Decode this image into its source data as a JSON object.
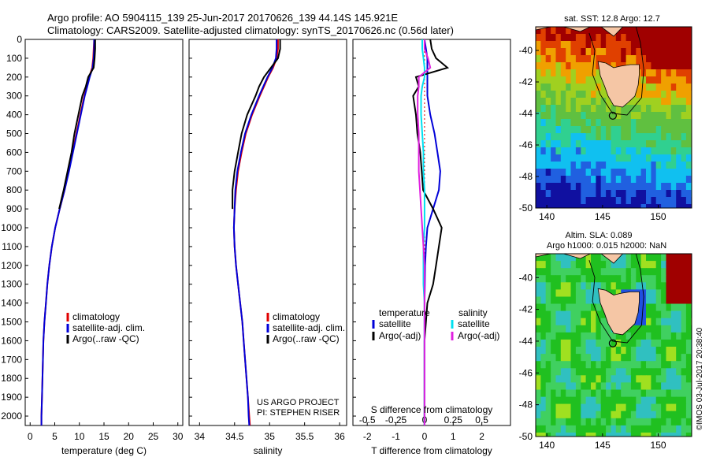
{
  "header": {
    "line1": "Argo profile: AO 5904115_139 25-Jun-2017 20170626_139 44.14S 145.921E",
    "line2": "Climatology: CARS2009. Satellite-adjusted climatology: synTS_20170626.nc (0.56d later)"
  },
  "credit": "©IMOS 03-Jul-2017 20:38:40",
  "colors": {
    "climatology": "#e00000",
    "satellite": "#0000d8",
    "argo": "#000000",
    "s_satellite": "#00e0f0",
    "s_argo": "#e020e0",
    "coast": "#f5c6a5"
  },
  "chart_data": [
    {
      "type": "line",
      "name": "temperature",
      "xlabel": "temperature (deg C)",
      "ylabel": "",
      "xlim": [
        -1,
        31
      ],
      "ylim": [
        2050,
        0
      ],
      "xticks": [
        "0",
        "5",
        "10",
        "15",
        "20",
        "25",
        "30"
      ],
      "xtick_values": [
        0,
        5,
        10,
        15,
        20,
        25,
        30
      ],
      "yticks": [
        "0",
        "100",
        "200",
        "300",
        "400",
        "500",
        "600",
        "700",
        "800",
        "900",
        "1000",
        "1100",
        "1200",
        "1300",
        "1400",
        "1500",
        "1600",
        "1700",
        "1800",
        "1900",
        "2000"
      ],
      "ytick_values": [
        0,
        100,
        200,
        300,
        400,
        500,
        600,
        700,
        800,
        900,
        1000,
        1100,
        1200,
        1300,
        1400,
        1500,
        1600,
        1700,
        1800,
        1900,
        2000
      ],
      "legend": {
        "position": "center-bottom",
        "entries": [
          "climatology",
          "satellite-adj. clim.",
          "Argo(..raw -QC)"
        ]
      },
      "depth": [
        0,
        50,
        100,
        150,
        200,
        250,
        300,
        400,
        500,
        600,
        700,
        800,
        900,
        1000,
        1100,
        1200,
        1300,
        1400,
        1500,
        1600,
        1700,
        1800,
        1900,
        2000,
        2050
      ],
      "series": [
        {
          "name": "climatology",
          "color": "#e00000",
          "values": [
            13.0,
            12.9,
            12.8,
            12.6,
            12.0,
            11.5,
            11.0,
            10.2,
            9.4,
            8.6,
            7.8,
            7.0,
            6.0,
            5.1,
            4.4,
            3.9,
            3.5,
            3.2,
            2.9,
            2.7,
            2.6,
            2.5,
            2.4,
            2.3,
            2.3
          ]
        },
        {
          "name": "satellite-adj. clim.",
          "color": "#0000d8",
          "values": [
            13.0,
            13.0,
            12.9,
            12.7,
            12.1,
            11.6,
            11.1,
            10.3,
            9.5,
            8.7,
            7.9,
            7.0,
            6.0,
            5.1,
            4.4,
            3.9,
            3.5,
            3.2,
            2.9,
            2.7,
            2.6,
            2.5,
            2.4,
            2.3,
            2.3
          ]
        },
        {
          "name": "Argo(..raw -QC)",
          "color": "#000000",
          "values": [
            13.2,
            13.2,
            13.1,
            12.9,
            11.8,
            11.3,
            10.6,
            9.8,
            9.0,
            8.4,
            7.6,
            6.8,
            5.9,
            null,
            null,
            null,
            null,
            null,
            null,
            null,
            null,
            null,
            null,
            null,
            null
          ]
        }
      ]
    },
    {
      "type": "line",
      "name": "salinity",
      "xlabel": "salinity",
      "xlim": [
        33.85,
        36.1
      ],
      "ylim": [
        2050,
        0
      ],
      "xticks": [
        "34",
        "34.5",
        "35",
        "35.5",
        "36"
      ],
      "xtick_values": [
        34,
        34.5,
        35,
        35.5,
        36
      ],
      "legend": {
        "position": "center-bottom",
        "entries": [
          "climatology",
          "satellite-adj. clim.",
          "Argo(..raw -QC)"
        ]
      },
      "annotations": [
        "US ARGO PROJECT",
        "PI: STEPHEN RISER"
      ],
      "depth": [
        0,
        50,
        100,
        150,
        200,
        250,
        300,
        400,
        500,
        600,
        700,
        800,
        900,
        1000,
        1100,
        1200,
        1300,
        1400,
        1500,
        1600,
        1700,
        1800,
        1900,
        2000,
        2050
      ],
      "series": [
        {
          "name": "climatology",
          "color": "#e00000",
          "values": [
            35.12,
            35.12,
            35.1,
            35.05,
            34.98,
            34.92,
            34.86,
            34.75,
            34.66,
            34.6,
            34.55,
            34.52,
            34.5,
            34.49,
            34.5,
            34.52,
            34.55,
            34.58,
            34.61,
            34.63,
            34.65,
            34.67,
            34.69,
            34.71,
            34.72
          ]
        },
        {
          "name": "satellite-adj. clim.",
          "color": "#0000d8",
          "values": [
            35.1,
            35.1,
            35.09,
            35.04,
            34.97,
            34.91,
            34.85,
            34.74,
            34.65,
            34.59,
            34.54,
            34.51,
            34.5,
            34.49,
            34.5,
            34.52,
            34.55,
            34.58,
            34.61,
            34.63,
            34.65,
            34.67,
            34.69,
            34.7,
            34.71
          ]
        },
        {
          "name": "Argo(..raw -QC)",
          "color": "#000000",
          "values": [
            35.15,
            35.15,
            35.12,
            35.02,
            34.92,
            34.85,
            34.8,
            34.68,
            34.6,
            34.55,
            34.5,
            34.47,
            34.47,
            null,
            null,
            null,
            null,
            null,
            null,
            null,
            null,
            null,
            null,
            null,
            null
          ]
        }
      ]
    },
    {
      "type": "line",
      "name": "differences",
      "xlabel": "T difference from climatology",
      "xlabel_top": "S difference from climatology",
      "xlim_T": [
        -2.5,
        3.0
      ],
      "xticks_T": [
        "-2",
        "-1",
        "0",
        "1",
        "2"
      ],
      "xtick_values_T": [
        -2,
        -1,
        0,
        1,
        2
      ],
      "xticks_S": [
        "-0.5",
        "-0.25",
        "0",
        "0.25",
        "0.5"
      ],
      "xtick_values_S": [
        -0.5,
        -0.25,
        0,
        0.25,
        0.5
      ],
      "legend": {
        "position": "center-right",
        "col1_title": "temperature",
        "col2_title": "salinity",
        "entries": [
          "satellite",
          "Argo(-adj)",
          "satellite",
          "Argo(-adj)"
        ]
      },
      "depth": [
        0,
        50,
        100,
        150,
        200,
        250,
        300,
        400,
        500,
        600,
        700,
        800,
        900,
        1000,
        1100,
        1200,
        1300,
        1400,
        1500,
        1600,
        1700,
        1800,
        1900,
        2000,
        2050
      ],
      "series": [
        {
          "name": "T satellite",
          "color": "#0000d8",
          "values": [
            0.0,
            0.05,
            0.1,
            0.1,
            0.1,
            0.1,
            0.1,
            0.2,
            0.35,
            0.45,
            0.55,
            0.5,
            0.3,
            0.1,
            0.05,
            0.02,
            0.01,
            0,
            0,
            0,
            0,
            0,
            0,
            0,
            0
          ]
        },
        {
          "name": "T Argo(-adj)",
          "color": "#000000",
          "values": [
            0.2,
            0.25,
            0.4,
            0.8,
            -0.3,
            -0.2,
            -0.4,
            -0.3,
            -0.25,
            -0.15,
            -0.1,
            -0.05,
            0.3,
            0.6,
            0.5,
            0.4,
            0.3,
            0.1,
            0.05,
            0,
            0,
            0,
            0,
            0,
            0
          ]
        },
        {
          "name": "S satellite",
          "color": "#00e0f0",
          "values": [
            -0.02,
            -0.02,
            -0.01,
            0.0,
            0.0,
            -0.02,
            -0.03,
            -0.03,
            -0.02,
            -0.01,
            -0.01,
            0.0,
            0.0,
            0.0,
            -0.01,
            -0.01,
            -0.01,
            0,
            0,
            0,
            0,
            0,
            0,
            0,
            0
          ]
        },
        {
          "name": "S Argo(-adj)",
          "color": "#e020e0",
          "values": [
            0.0,
            0.0,
            0.03,
            0.05,
            -0.05,
            -0.05,
            -0.06,
            -0.06,
            -0.05,
            -0.05,
            -0.05,
            -0.04,
            -0.03,
            -0.02,
            -0.01,
            0,
            0,
            0,
            0,
            0,
            0,
            0,
            0,
            0,
            0
          ]
        }
      ]
    }
  ],
  "maps": [
    {
      "name": "SST",
      "title": "sat. SST: 12.8 Argo: 12.7",
      "xlim": [
        139,
        153
      ],
      "ylim": [
        -50,
        -38.5
      ],
      "xticks": [
        "140",
        "145",
        "150"
      ],
      "xtick_values": [
        140,
        145,
        150
      ],
      "yticks": [
        "-40",
        "-42",
        "-44",
        "-46",
        "-48",
        "-50"
      ],
      "ytick_values": [
        -40,
        -42,
        -44,
        -46,
        -48,
        -50
      ],
      "float": {
        "lon": 145.921,
        "lat": -44.14
      }
    },
    {
      "name": "SLA",
      "title": "Altim. SLA: 0.089",
      "subtitle": "Argo h1000: 0.015 h2000: NaN",
      "xlim": [
        139,
        153
      ],
      "ylim": [
        -50,
        -38.5
      ],
      "xticks": [
        "140",
        "145",
        "150"
      ],
      "xtick_values": [
        140,
        145,
        150
      ],
      "yticks": [
        "-40",
        "-42",
        "-44",
        "-46",
        "-48",
        "-50"
      ],
      "ytick_values": [
        -40,
        -42,
        -44,
        -46,
        -48,
        -50
      ],
      "float": {
        "lon": 145.921,
        "lat": -44.14
      }
    }
  ]
}
